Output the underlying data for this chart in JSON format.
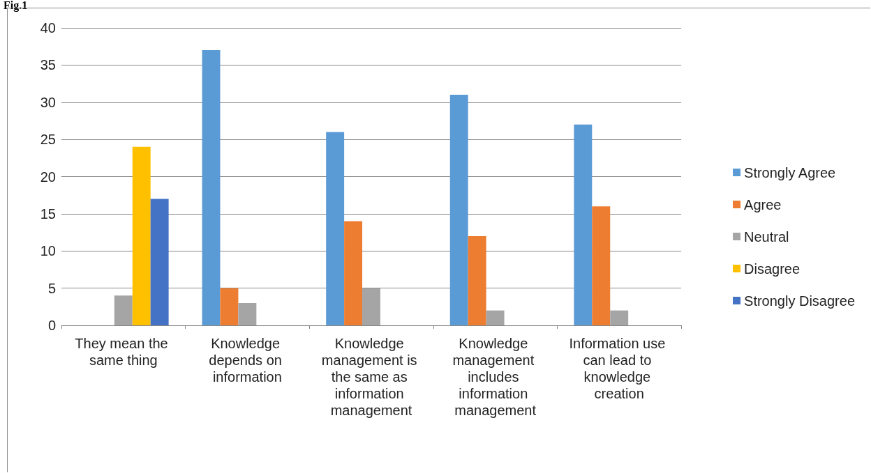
{
  "chart_data": {
    "type": "bar",
    "title": "Fig.1",
    "categories": [
      "They mean the same thing",
      "Knowledge depends on information",
      "Knowledge management is the same as information management",
      "Knowledge management includes information management",
      "Information use can lead to knowledge creation"
    ],
    "series": [
      {
        "name": "Strongly Agree",
        "color": "#5b9bd5",
        "values": [
          0,
          37,
          26,
          31,
          27
        ]
      },
      {
        "name": "Agree",
        "color": "#ed7d31",
        "values": [
          0,
          5,
          14,
          12,
          16
        ]
      },
      {
        "name": "Neutral",
        "color": "#a5a5a5",
        "values": [
          4,
          3,
          5,
          2,
          2
        ]
      },
      {
        "name": "Disagree",
        "color": "#ffc000",
        "values": [
          24,
          0,
          0,
          0,
          0
        ]
      },
      {
        "name": "Strongly Disagree",
        "color": "#4472c4",
        "values": [
          17,
          0,
          0,
          0,
          0
        ]
      }
    ],
    "ylim": [
      0,
      40
    ],
    "yticks": [
      0,
      5,
      10,
      15,
      20,
      25,
      30,
      35,
      40
    ],
    "grid": "y",
    "legend": "right"
  }
}
